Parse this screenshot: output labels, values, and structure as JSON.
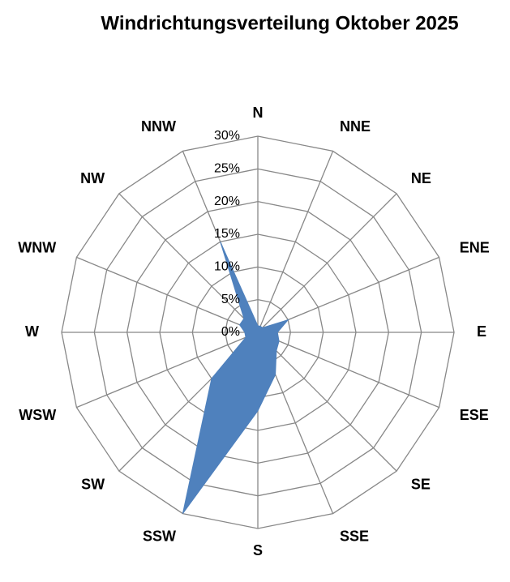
{
  "chart_data": {
    "type": "radar",
    "title": "Windrichtungsverteilung Oktober 2025",
    "categories": [
      "N",
      "NNE",
      "NE",
      "ENE",
      "E",
      "ESE",
      "SE",
      "SSE",
      "S",
      "SSW",
      "SW",
      "WSW",
      "W",
      "WNW",
      "NW",
      "NNW"
    ],
    "values": [
      1,
      1,
      1,
      5,
      3,
      3.5,
      4,
      7,
      12,
      30,
      10,
      2,
      2,
      3,
      3,
      15
    ],
    "color": "#4f81bd",
    "rlim": [
      0,
      30
    ],
    "rticks": [
      {
        "value": 0,
        "label": "0%"
      },
      {
        "value": 5,
        "label": "5%"
      },
      {
        "value": 10,
        "label": "10%"
      },
      {
        "value": 15,
        "label": "15%"
      },
      {
        "value": 20,
        "label": "20%"
      },
      {
        "value": 25,
        "label": "25%"
      },
      {
        "value": 30,
        "label": "30%"
      }
    ],
    "grid": true
  }
}
